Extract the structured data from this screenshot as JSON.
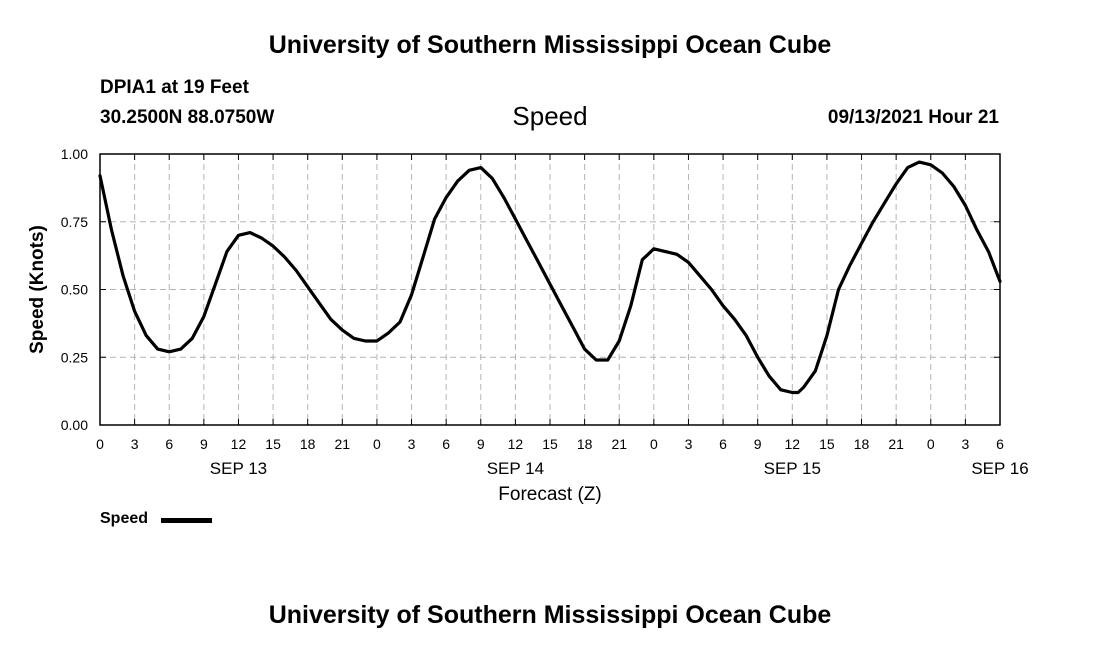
{
  "page": {
    "top_title": "University of Southern Mississippi Ocean Cube",
    "bottom_title": "University of Southern Mississippi Ocean Cube",
    "station": "DPIA1 at 19 Feet",
    "coordinates": "30.2500N  88.0750W",
    "run_time": "09/13/2021 Hour 21"
  },
  "chart_data": {
    "type": "line",
    "title": "Speed",
    "xlabel": "Forecast (Z)",
    "ylabel": "Speed (Knots)",
    "x_unit": "hours from SEP 13 00Z",
    "xlim": [
      0,
      78
    ],
    "ylim": [
      0,
      1.0
    ],
    "y_ticks": [
      "0.00",
      "0.25",
      "0.50",
      "0.75",
      "1.00"
    ],
    "y_tick_values": [
      0,
      0.25,
      0.5,
      0.75,
      1.0
    ],
    "x_tick_labels": [
      "0",
      "3",
      "6",
      "9",
      "12",
      "15",
      "18",
      "21",
      "0",
      "3",
      "6",
      "9",
      "12",
      "15",
      "18",
      "21",
      "0",
      "3",
      "6",
      "9",
      "12",
      "15",
      "18",
      "21",
      "0",
      "3",
      "6"
    ],
    "date_labels": [
      {
        "label": "SEP 13",
        "hour": 12
      },
      {
        "label": "SEP 14",
        "hour": 36
      },
      {
        "label": "SEP 15",
        "hour": 60
      },
      {
        "label": "SEP 16",
        "hour": 78
      }
    ],
    "grid": true,
    "legend": {
      "label": "Speed",
      "position": "bottom-left"
    },
    "series": [
      {
        "name": "Speed",
        "x": [
          0,
          1,
          2,
          3,
          4,
          5,
          6,
          7,
          8,
          9,
          10,
          11,
          12,
          13,
          14,
          15,
          16,
          17,
          18,
          19,
          20,
          21,
          22,
          23,
          24,
          25,
          26,
          27,
          28,
          29,
          30,
          31,
          32,
          33,
          34,
          35,
          36,
          37,
          38,
          39,
          40,
          41,
          42,
          43,
          44,
          45,
          46,
          47,
          47.5,
          48,
          49,
          50,
          51,
          52,
          53,
          54,
          55,
          56,
          57,
          58,
          59,
          60,
          60.5,
          61,
          62,
          63,
          64,
          65,
          66,
          67,
          68,
          69,
          70,
          71,
          72,
          73,
          74,
          75,
          76,
          77,
          78
        ],
        "y": [
          0.92,
          0.72,
          0.55,
          0.42,
          0.33,
          0.28,
          0.27,
          0.28,
          0.32,
          0.4,
          0.52,
          0.64,
          0.7,
          0.71,
          0.69,
          0.66,
          0.62,
          0.57,
          0.51,
          0.45,
          0.39,
          0.35,
          0.32,
          0.31,
          0.31,
          0.34,
          0.38,
          0.48,
          0.62,
          0.76,
          0.84,
          0.9,
          0.94,
          0.95,
          0.91,
          0.84,
          0.76,
          0.68,
          0.6,
          0.52,
          0.44,
          0.36,
          0.28,
          0.24,
          0.24,
          0.31,
          0.44,
          0.61,
          0.63,
          0.65,
          0.64,
          0.63,
          0.6,
          0.55,
          0.5,
          0.44,
          0.39,
          0.33,
          0.25,
          0.18,
          0.13,
          0.12,
          0.12,
          0.14,
          0.2,
          0.33,
          0.5,
          0.59,
          0.67,
          0.75,
          0.82,
          0.89,
          0.95,
          0.97,
          0.96,
          0.93,
          0.88,
          0.81,
          0.72,
          0.64,
          0.53
        ]
      }
    ]
  }
}
